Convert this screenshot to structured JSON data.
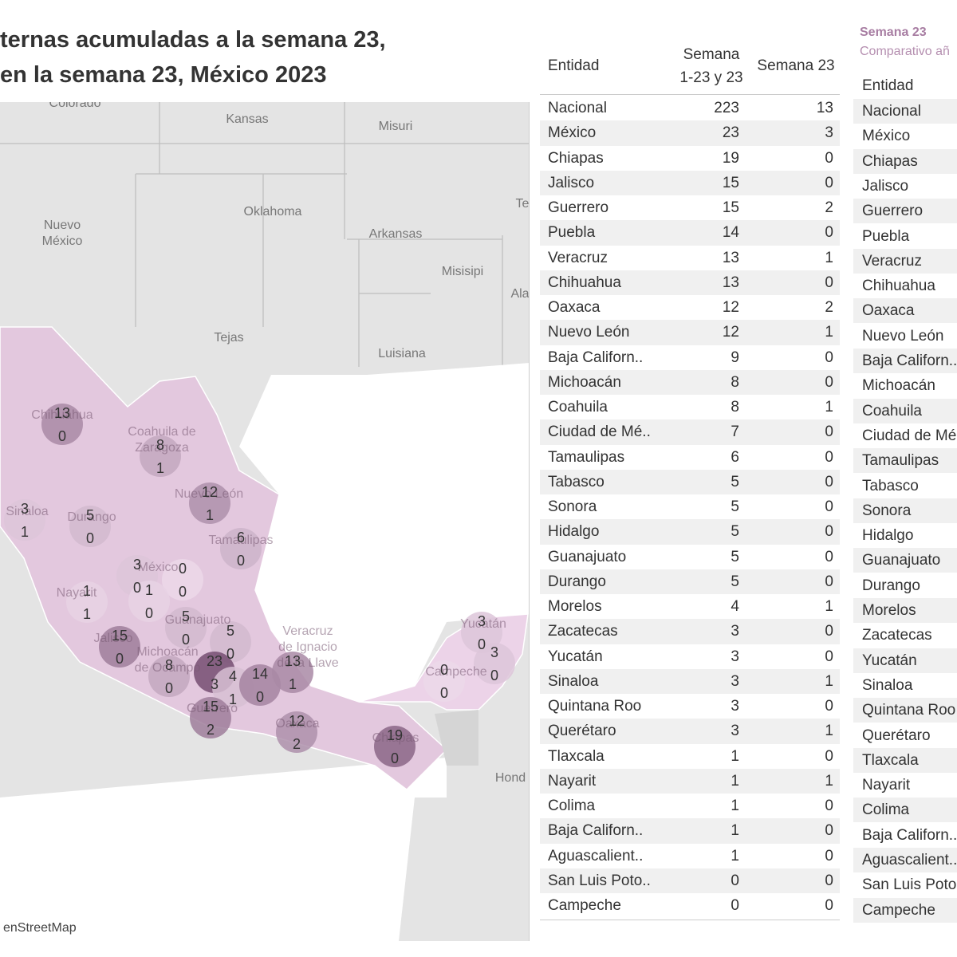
{
  "title": {
    "line1": "ternas acumuladas a la semana 23,",
    "line2": "en la semana 23, México 2023"
  },
  "map": {
    "place_labels": [
      "Colorado",
      "Kansas",
      "Misuri",
      "Oklahoma",
      "Nuevo\nMéxico",
      "Arkansas",
      "Misisipi",
      "Tejas",
      "Luisiana",
      "Te",
      "Ala",
      "Chihuahua",
      "Coahuila de\nZaragoza",
      "Nuevo León",
      "Tamaulipas",
      "Durango",
      "Sinaloa",
      "México",
      "Nayarit",
      "Jalisco",
      "Michoacán\nde Ocampo",
      "Guanajuato",
      "Veracruz\nde Ignacio\nde la Llave",
      "Guerrero",
      "Oaxaca",
      "Chiapas",
      "Campeche",
      "Yucatán",
      "Hond"
    ],
    "attribution": "enStreetMap",
    "states": [
      {
        "total": 13,
        "week": 0
      },
      {
        "total": 8,
        "week": 1
      },
      {
        "total": 12,
        "week": 1
      },
      {
        "total": 6,
        "week": 0
      },
      {
        "total": 3,
        "week": 1
      },
      {
        "total": 5,
        "week": 0
      },
      {
        "total": 3,
        "week": 0
      },
      {
        "total": 0,
        "week": 0
      },
      {
        "total": 1,
        "week": 0
      },
      {
        "total": 1,
        "week": 1
      },
      {
        "total": 15,
        "week": 0
      },
      {
        "total": 5,
        "week": 0
      },
      {
        "total": 5,
        "week": 0
      },
      {
        "total": 8,
        "week": 0
      },
      {
        "total": 23,
        "week": 3
      },
      {
        "total": 4,
        "week": 1
      },
      {
        "total": 14,
        "week": 0
      },
      {
        "total": 13,
        "week": 1
      },
      {
        "total": 15,
        "week": 2
      },
      {
        "total": 12,
        "week": 2
      },
      {
        "total": 19,
        "week": 0
      },
      {
        "total": 0,
        "week": 0
      },
      {
        "total": 3,
        "week": 0
      },
      {
        "total": 3,
        "week": 0
      }
    ]
  },
  "table": {
    "headers": [
      "Entidad",
      "Semana\n1-23 y 23",
      "Semana 23"
    ],
    "rows": [
      [
        "Nacional",
        223,
        13
      ],
      [
        "México",
        23,
        3
      ],
      [
        "Chiapas",
        19,
        0
      ],
      [
        "Jalisco",
        15,
        0
      ],
      [
        "Guerrero",
        15,
        2
      ],
      [
        "Puebla",
        14,
        0
      ],
      [
        "Veracruz",
        13,
        1
      ],
      [
        "Chihuahua",
        13,
        0
      ],
      [
        "Oaxaca",
        12,
        2
      ],
      [
        "Nuevo León",
        12,
        1
      ],
      [
        "Baja Californ..",
        9,
        0
      ],
      [
        "Michoacán",
        8,
        0
      ],
      [
        "Coahuila",
        8,
        1
      ],
      [
        "Ciudad de Mé..",
        7,
        0
      ],
      [
        "Tamaulipas",
        6,
        0
      ],
      [
        "Tabasco",
        5,
        0
      ],
      [
        "Sonora",
        5,
        0
      ],
      [
        "Hidalgo",
        5,
        0
      ],
      [
        "Guanajuato",
        5,
        0
      ],
      [
        "Durango",
        5,
        0
      ],
      [
        "Morelos",
        4,
        1
      ],
      [
        "Zacatecas",
        3,
        0
      ],
      [
        "Yucatán",
        3,
        0
      ],
      [
        "Sinaloa",
        3,
        1
      ],
      [
        "Quintana Roo",
        3,
        0
      ],
      [
        "Querétaro",
        3,
        1
      ],
      [
        "Tlaxcala",
        1,
        0
      ],
      [
        "Nayarit",
        1,
        1
      ],
      [
        "Colima",
        1,
        0
      ],
      [
        "Baja Californ..",
        1,
        0
      ],
      [
        "Aguascalient..",
        1,
        0
      ],
      [
        "San Luis Poto..",
        0,
        0
      ],
      [
        "Campeche",
        0,
        0
      ]
    ]
  },
  "table2": {
    "title": "Semana 23",
    "subtitle": "Comparativo añ",
    "header": "Entidad",
    "rows": [
      "Nacional",
      "México",
      "Chiapas",
      "Jalisco",
      "Guerrero",
      "Puebla",
      "Veracruz",
      "Chihuahua",
      "Oaxaca",
      "Nuevo León",
      "Baja Californ..",
      "Michoacán",
      "Coahuila",
      "Ciudad de Mé",
      "Tamaulipas",
      "Tabasco",
      "Sonora",
      "Hidalgo",
      "Guanajuato",
      "Durango",
      "Morelos",
      "Zacatecas",
      "Yucatán",
      "Sinaloa",
      "Quintana Roo",
      "Querétaro",
      "Tlaxcala",
      "Nayarit",
      "Colima",
      "Baja Californ..",
      "Aguascalient..",
      "San Luis Poto",
      "Campeche"
    ]
  }
}
